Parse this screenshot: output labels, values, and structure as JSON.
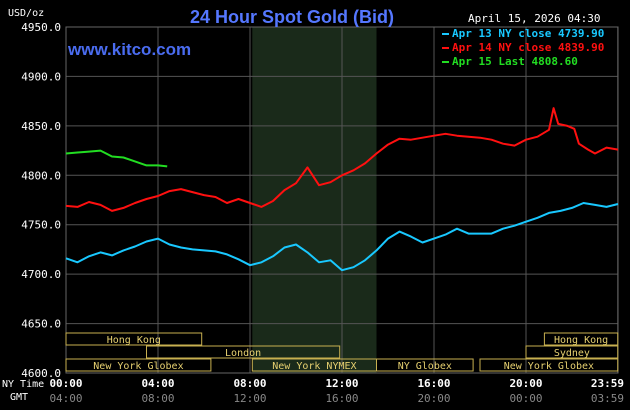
{
  "chart_data": {
    "type": "line",
    "title": "24 Hour Spot Gold (Bid)",
    "watermark": "www.kitco.com",
    "date_label": "April 15, 2026 04:30",
    "y_unit": "USD/oz",
    "ylim": [
      4600,
      4950
    ],
    "y_ticks": [
      "4600.0",
      "4650.0",
      "4700.0",
      "4750.0",
      "4800.0",
      "4850.0",
      "4900.0",
      "4950.0"
    ],
    "x_ticks_ny": [
      "00:00",
      "04:00",
      "08:00",
      "12:00",
      "16:00",
      "20:00",
      "23:59"
    ],
    "x_ticks_gmt": [
      "04:00",
      "08:00",
      "12:00",
      "16:00",
      "20:00",
      "00:00",
      "03:59"
    ],
    "x_row_labels": [
      "NY Time",
      "GMT"
    ],
    "grid": true,
    "legend_position": "top-right",
    "shaded_hours": [
      8.1,
      13.5
    ],
    "sessions": [
      {
        "label": "Hong Kong",
        "start": 0,
        "end": 5.9,
        "row": 0
      },
      {
        "label": "Hong Kong",
        "start": 20.8,
        "end": 23.99,
        "row": 0
      },
      {
        "label": "London",
        "start": 3.5,
        "end": 11.9,
        "row": 1
      },
      {
        "label": "Sydney",
        "start": 20,
        "end": 23.99,
        "row": 1
      },
      {
        "label": "New York Globex",
        "start": 0,
        "end": 6.3,
        "row": 2
      },
      {
        "label": "New York NYMEX",
        "start": 8.1,
        "end": 13.5,
        "row": 2
      },
      {
        "label": "NY Globex",
        "start": 13.5,
        "end": 17.7,
        "row": 2
      },
      {
        "label": "New York Globex",
        "start": 18,
        "end": 23.99,
        "row": 2
      }
    ],
    "series": [
      {
        "name": "Apr 13 NY close 4739.90",
        "color": "#19c8ff",
        "points": [
          [
            0,
            4716
          ],
          [
            0.5,
            4712
          ],
          [
            1,
            4718
          ],
          [
            1.5,
            4722
          ],
          [
            2,
            4719
          ],
          [
            2.5,
            4724
          ],
          [
            3,
            4728
          ],
          [
            3.5,
            4733
          ],
          [
            4,
            4736
          ],
          [
            4.5,
            4730
          ],
          [
            5,
            4727
          ],
          [
            5.5,
            4725
          ],
          [
            6,
            4724
          ],
          [
            6.5,
            4723
          ],
          [
            7,
            4720
          ],
          [
            7.5,
            4715
          ],
          [
            8,
            4709
          ],
          [
            8.5,
            4712
          ],
          [
            9,
            4718
          ],
          [
            9.5,
            4727
          ],
          [
            10,
            4730
          ],
          [
            10.5,
            4722
          ],
          [
            11,
            4712
          ],
          [
            11.5,
            4714
          ],
          [
            12,
            4704
          ],
          [
            12.5,
            4707
          ],
          [
            13,
            4714
          ],
          [
            13.5,
            4724
          ],
          [
            14,
            4736
          ],
          [
            14.5,
            4743
          ],
          [
            15,
            4738
          ],
          [
            15.5,
            4732
          ],
          [
            16,
            4736
          ],
          [
            16.5,
            4740
          ],
          [
            17,
            4746
          ],
          [
            17.5,
            4741
          ],
          [
            18,
            4741
          ],
          [
            18.5,
            4741
          ],
          [
            19,
            4746
          ],
          [
            19.5,
            4749
          ],
          [
            20,
            4753
          ],
          [
            20.5,
            4757
          ],
          [
            21,
            4762
          ],
          [
            21.5,
            4764
          ],
          [
            22,
            4767
          ],
          [
            22.5,
            4772
          ],
          [
            23,
            4770
          ],
          [
            23.5,
            4768
          ],
          [
            24,
            4771
          ]
        ]
      },
      {
        "name": "Apr 14 NY close 4839.90",
        "color": "#ff1010",
        "points": [
          [
            0,
            4769
          ],
          [
            0.5,
            4768
          ],
          [
            1,
            4773
          ],
          [
            1.5,
            4770
          ],
          [
            2,
            4764
          ],
          [
            2.5,
            4767
          ],
          [
            3,
            4772
          ],
          [
            3.5,
            4776
          ],
          [
            4,
            4779
          ],
          [
            4.5,
            4784
          ],
          [
            5,
            4786
          ],
          [
            5.5,
            4783
          ],
          [
            6,
            4780
          ],
          [
            6.5,
            4778
          ],
          [
            7,
            4772
          ],
          [
            7.5,
            4776
          ],
          [
            8,
            4772
          ],
          [
            8.5,
            4768
          ],
          [
            9,
            4774
          ],
          [
            9.5,
            4785
          ],
          [
            10,
            4792
          ],
          [
            10.5,
            4808
          ],
          [
            11,
            4790
          ],
          [
            11.5,
            4793
          ],
          [
            12,
            4800
          ],
          [
            12.5,
            4805
          ],
          [
            13,
            4812
          ],
          [
            13.5,
            4822
          ],
          [
            14,
            4831
          ],
          [
            14.5,
            4837
          ],
          [
            15,
            4836
          ],
          [
            15.5,
            4838
          ],
          [
            16,
            4840
          ],
          [
            16.5,
            4842
          ],
          [
            17,
            4840
          ],
          [
            17.5,
            4839
          ],
          [
            18,
            4838
          ],
          [
            18.5,
            4836
          ],
          [
            19,
            4832
          ],
          [
            19.5,
            4830
          ],
          [
            20,
            4836
          ],
          [
            20.5,
            4839
          ],
          [
            21,
            4846
          ],
          [
            21.2,
            4868
          ],
          [
            21.4,
            4852
          ],
          [
            21.8,
            4850
          ],
          [
            22.1,
            4847
          ],
          [
            22.3,
            4832
          ],
          [
            22.7,
            4826
          ],
          [
            23,
            4822
          ],
          [
            23.5,
            4828
          ],
          [
            24,
            4826
          ]
        ]
      },
      {
        "name": "Apr 15 Last 4808.60",
        "color": "#22dd22",
        "points": [
          [
            0,
            4822
          ],
          [
            0.5,
            4823
          ],
          [
            1,
            4824
          ],
          [
            1.5,
            4825
          ],
          [
            2,
            4819
          ],
          [
            2.5,
            4818
          ],
          [
            3,
            4814
          ],
          [
            3.5,
            4810
          ],
          [
            4,
            4810
          ],
          [
            4.4,
            4809
          ]
        ]
      }
    ]
  }
}
